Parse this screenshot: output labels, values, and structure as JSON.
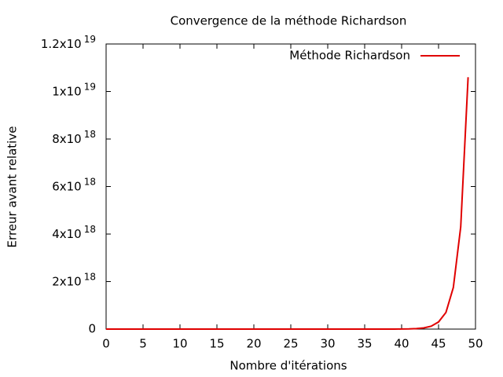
{
  "chart_data": {
    "type": "line",
    "title": "Convergence de la méthode Richardson",
    "xlabel": "Nombre d'itérations",
    "ylabel": "Erreur avant relative",
    "x": [
      0,
      1,
      2,
      3,
      4,
      5,
      6,
      7,
      8,
      9,
      10,
      11,
      12,
      13,
      14,
      15,
      16,
      17,
      18,
      19,
      20,
      21,
      22,
      23,
      24,
      25,
      26,
      27,
      28,
      29,
      30,
      31,
      32,
      33,
      34,
      35,
      36,
      37,
      38,
      39,
      40,
      41,
      42,
      43,
      44,
      45,
      46,
      47,
      48,
      49
    ],
    "series": [
      {
        "name": "Méthode Richardson",
        "color": "#e00000",
        "values": [
          0,
          0,
          0,
          0,
          0,
          0,
          0,
          0,
          0,
          0,
          0,
          0,
          0,
          0,
          0,
          0,
          0,
          0,
          0,
          0,
          0,
          0,
          0,
          0,
          0,
          0,
          0,
          0,
          0,
          0,
          0,
          0,
          0,
          0,
          0,
          0,
          0,
          0,
          0,
          0,
          3000000000000000.0,
          8000000000000000.0,
          2e+16,
          5e+16,
          1.2e+17,
          3e+17,
          7e+17,
          1.75e+18,
          4.3e+18,
          1.06e+19
        ]
      }
    ],
    "xlim": [
      0,
      50
    ],
    "xticks": [
      0,
      5,
      10,
      15,
      20,
      25,
      30,
      35,
      40,
      45,
      50
    ],
    "ylim": [
      0,
      1.2e+19
    ],
    "yticks": [
      0,
      {
        "value": 2e+18,
        "label": "2x10",
        "exponent": "18"
      },
      {
        "value": 4e+18,
        "label": "4x10",
        "exponent": "18"
      },
      {
        "value": 6e+18,
        "label": "6x10",
        "exponent": "18"
      },
      {
        "value": 8e+18,
        "label": "8x10",
        "exponent": "18"
      },
      {
        "value": 1e+19,
        "label": "1x10",
        "exponent": "19"
      },
      {
        "value": 1.2e+19,
        "label": "1.2x10",
        "exponent": "19"
      }
    ],
    "legend": "top-right"
  }
}
